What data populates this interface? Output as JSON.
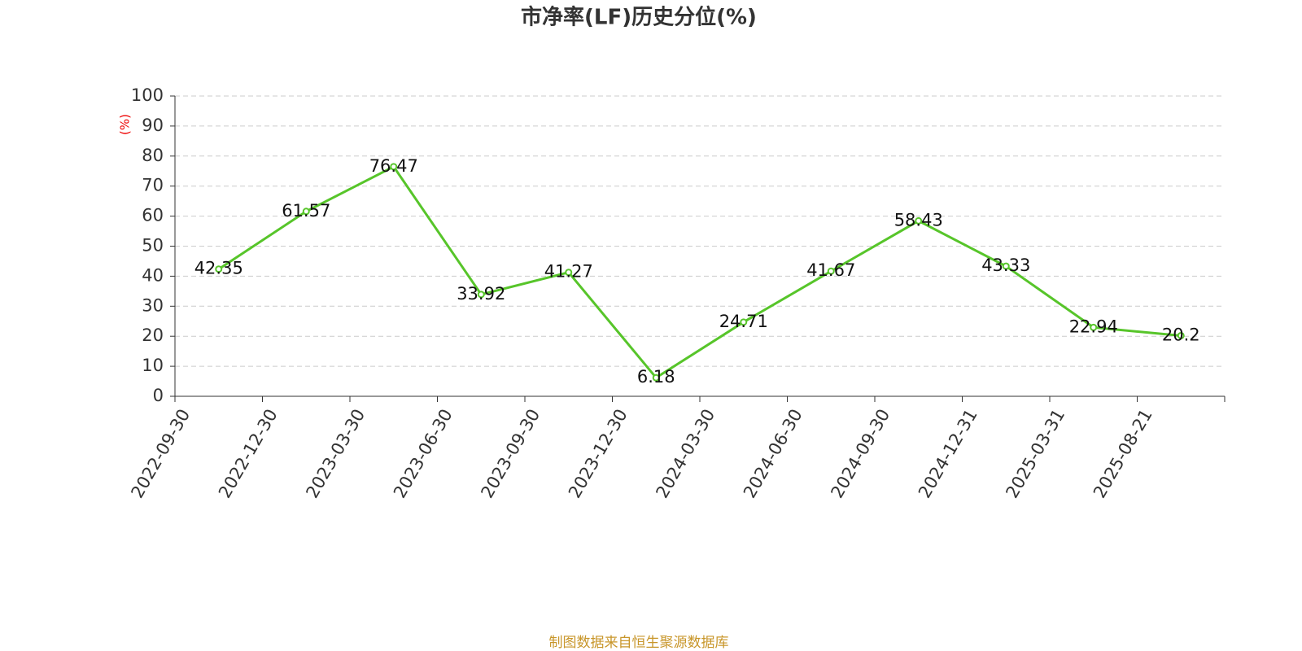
{
  "chart_data": {
    "type": "line",
    "title": "市净率(LF)历史分位(%)",
    "y_label": "(%)",
    "categories": [
      "2022-09-30",
      "2022-12-30",
      "2023-03-30",
      "2023-06-30",
      "2023-09-30",
      "2023-12-30",
      "2024-03-30",
      "2024-06-30",
      "2024-09-30",
      "2024-12-31",
      "2025-03-31",
      "2025-08-21"
    ],
    "series": [
      {
        "color": "#57c52a",
        "values": [
          42.35,
          61.57,
          76.47,
          33.92,
          41.27,
          6.18,
          24.71,
          41.67,
          58.43,
          43.33,
          22.94,
          20.2
        ]
      }
    ],
    "ylim": [
      0,
      100
    ],
    "yticks": [
      0,
      10,
      20,
      30,
      40,
      50,
      60,
      70,
      80,
      90,
      100
    ],
    "grid": true,
    "source": "制图数据来自恒生聚源数据库"
  }
}
